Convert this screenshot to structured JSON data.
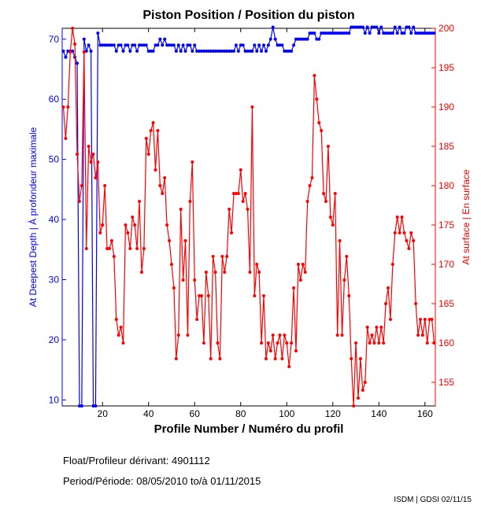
{
  "chart_data": {
    "type": "line",
    "title": "Piston Position / Position du piston",
    "xlabel": "Profile Number / Numéro du profil",
    "ylabel_left": "At Deepest Depth | À profondeur maximale",
    "ylabel_right": "At surface | En surface",
    "xlim": [
      2.5,
      164.5
    ],
    "ylim_left": [
      9,
      71.8
    ],
    "ylim_right": [
      152,
      200
    ],
    "xticks": [
      20,
      40,
      60,
      80,
      100,
      120,
      140,
      160
    ],
    "yticks_left": [
      10,
      20,
      30,
      40,
      50,
      60,
      70
    ],
    "yticks_right": [
      155,
      160,
      165,
      170,
      175,
      180,
      185,
      190,
      195,
      200
    ],
    "grid": false,
    "x_start": 3,
    "series": [
      {
        "name": "At Deepest Depth",
        "axis": "left",
        "color": "#0000ff",
        "values": [
          68,
          67,
          68,
          68,
          68,
          67,
          66,
          9,
          9,
          70,
          68,
          69,
          68,
          9,
          9,
          71,
          69,
          69,
          69,
          69,
          69,
          69,
          69,
          68,
          69,
          69,
          68,
          69,
          69,
          68,
          69,
          69,
          68,
          69,
          69,
          69,
          69,
          68,
          68,
          68,
          69,
          69,
          70,
          69,
          70,
          69,
          69,
          69,
          69,
          68,
          69,
          68,
          69,
          68,
          69,
          69,
          68,
          69,
          68,
          68,
          68,
          68,
          68,
          68,
          68,
          68,
          68,
          68,
          68,
          68,
          68,
          68,
          68,
          68,
          68,
          69,
          68,
          69,
          69,
          68,
          68,
          68,
          68,
          69,
          68,
          69,
          68,
          69,
          68,
          69,
          70,
          72,
          70,
          69,
          69,
          69,
          68,
          68,
          68,
          68,
          69,
          70,
          70,
          70,
          70,
          70,
          70,
          71,
          71,
          71,
          70,
          70,
          71,
          71,
          71,
          71,
          71,
          71,
          71,
          71,
          71,
          71,
          71,
          71,
          71,
          72,
          72,
          72,
          72,
          72,
          72,
          71,
          72,
          71,
          72,
          72,
          72,
          71,
          72,
          71,
          71,
          71,
          71,
          71,
          72,
          71,
          72,
          71,
          71,
          72,
          72,
          71,
          72,
          71,
          71,
          71,
          71,
          71,
          71,
          71,
          71,
          71
        ]
      },
      {
        "name": "At surface",
        "axis": "right",
        "color": "#ff0000",
        "values": [
          190,
          186,
          190,
          197,
          200,
          198,
          184,
          178,
          180,
          197,
          172,
          185,
          183,
          184,
          181,
          183,
          174,
          175,
          180,
          172,
          172,
          173,
          171,
          163,
          161,
          162,
          160,
          175,
          174,
          172,
          176,
          175,
          172,
          178,
          169,
          172,
          186,
          184,
          187,
          188,
          182,
          187,
          180,
          179,
          181,
          175,
          173,
          170,
          167,
          158,
          161,
          177,
          168,
          173,
          161,
          178,
          183,
          168,
          163,
          166,
          166,
          160,
          169,
          166,
          158,
          171,
          169,
          160,
          158,
          171,
          169,
          171,
          177,
          174,
          179,
          179,
          179,
          182,
          178,
          179,
          177,
          169,
          190,
          166,
          170,
          169,
          160,
          166,
          158,
          160,
          159,
          161,
          158,
          160,
          161,
          158,
          161,
          160,
          157,
          160,
          167,
          159,
          170,
          168,
          170,
          169,
          178,
          180,
          181,
          194,
          191,
          188,
          187,
          179,
          178,
          185,
          176,
          175,
          179,
          161,
          173,
          161,
          168,
          171,
          166,
          158,
          152,
          160,
          153,
          158,
          154,
          155,
          162,
          160,
          161,
          160,
          162,
          160,
          162,
          160,
          165,
          167,
          163,
          170,
          174,
          176,
          174,
          176,
          174,
          173,
          172,
          174,
          173,
          165,
          161,
          163,
          161,
          163,
          160,
          163,
          163,
          160
        ]
      }
    ]
  },
  "info": {
    "float_label": "Float/Profileur dérivant:",
    "float_value": "4901112",
    "period_label": "Period/Période:",
    "period_start": "08/05/2010",
    "period_sep": "to/à",
    "period_end": "01/11/2015",
    "credit": "ISDM | GDSI 02/11/15"
  }
}
